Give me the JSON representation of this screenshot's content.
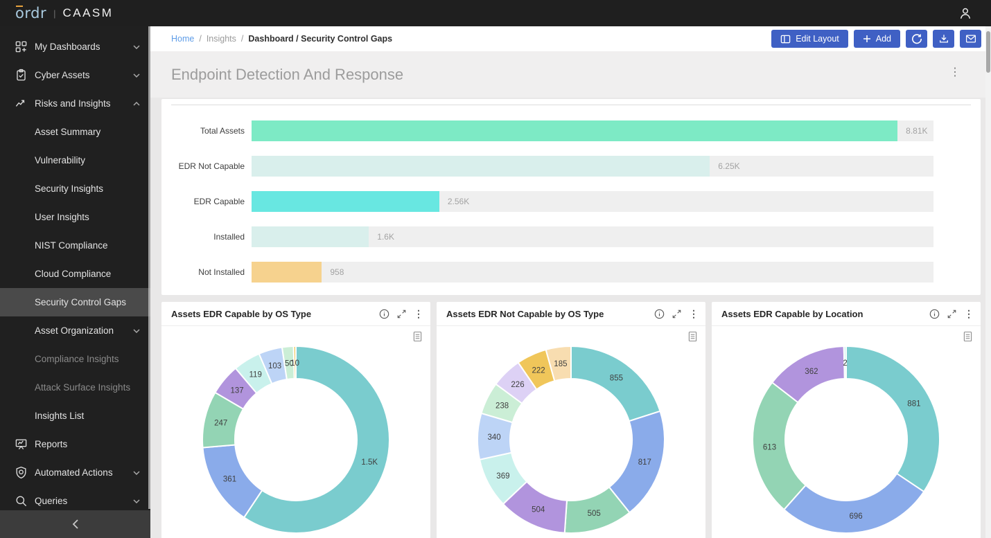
{
  "topbar": {
    "logo": "ordr",
    "divider": "|",
    "product": "CAASM"
  },
  "sidebar": {
    "items": [
      {
        "label": "My Dashboards",
        "icon": "dashboards-icon",
        "chevron": "down"
      },
      {
        "label": "Cyber Assets",
        "icon": "clipboard-icon",
        "chevron": "down"
      },
      {
        "label": "Risks and Insights",
        "icon": "trend-icon",
        "chevron": "up",
        "expanded": true
      },
      {
        "label": "Asset Summary"
      },
      {
        "label": "Vulnerability"
      },
      {
        "label": "Security Insights"
      },
      {
        "label": "User Insights"
      },
      {
        "label": "NIST Compliance"
      },
      {
        "label": "Cloud Compliance"
      },
      {
        "label": "Security Control Gaps",
        "selected": true
      },
      {
        "label": "Asset Organization",
        "chevron": "down"
      },
      {
        "label": "Compliance Insights",
        "disabled": true
      },
      {
        "label": "Attack Surface Insights",
        "disabled": true
      },
      {
        "label": "Insights List"
      },
      {
        "label": "Reports",
        "icon": "reports-icon"
      },
      {
        "label": "Automated Actions",
        "icon": "shield-icon",
        "chevron": "down"
      },
      {
        "label": "Queries",
        "icon": "search-icon",
        "chevron": "down"
      }
    ],
    "collapse_icon": "chevron-left-icon"
  },
  "breadcrumb": {
    "home": "Home",
    "separator": "/",
    "insights": "Insights",
    "current": "Dashboard / Security Control Gaps"
  },
  "toolbar": {
    "edit_layout": "Edit Layout",
    "add": "Add",
    "icon_buttons": [
      "refresh-icon",
      "download-icon",
      "mail-icon"
    ]
  },
  "card_icons": [
    "info-icon",
    "expand-icon",
    "kebab-icon",
    "document-icon"
  ],
  "colors": {
    "accent_blue": "#3f60c4",
    "sidebar_bg": "#202020",
    "selected_row": "#4a4a4a",
    "band_title": "#9c9c9c",
    "bar_track": "#efefef"
  },
  "chart_data": [
    {
      "type": "bar",
      "orientation": "horizontal",
      "title": "Endpoint Detection And Response",
      "categories": [
        "Total Assets",
        "EDR Not Capable",
        "EDR Capable",
        "Installed",
        "Not Installed"
      ],
      "values": [
        8810,
        6250,
        2560,
        1600,
        958
      ],
      "value_labels": [
        "8.81K",
        "6.25K",
        "2.56K",
        "1.6K",
        "958"
      ],
      "bar_colors": [
        "#7deac5",
        "#d9efec",
        "#68e7e1",
        "#d9efec",
        "#f6d28e"
      ],
      "track_color": "#efefef",
      "xlabel": "",
      "ylabel": "",
      "xlim": [
        0,
        9300
      ],
      "grid": false,
      "legend": "none"
    },
    {
      "type": "pie",
      "title": "Assets EDR Capable by OS Type",
      "slices": [
        {
          "label": "1.5K",
          "value": 1500,
          "color": "#7accce"
        },
        {
          "label": "361",
          "value": 361,
          "color": "#8aabea"
        },
        {
          "label": "247",
          "value": 247,
          "color": "#93d4b4"
        },
        {
          "label": "137",
          "value": 137,
          "color": "#b194dd"
        },
        {
          "label": "119",
          "value": 119,
          "color": "#c9f1ec"
        },
        {
          "label": "103",
          "value": 103,
          "color": "#bdd4f6"
        },
        {
          "label": "50",
          "value": 50,
          "color": "#cbeed6"
        },
        {
          "label": "10",
          "value": 10,
          "color": "#f0c65a"
        }
      ]
    },
    {
      "type": "pie",
      "title": "Assets EDR Not Capable by OS Type",
      "slices": [
        {
          "label": "855",
          "value": 855,
          "color": "#7accce"
        },
        {
          "label": "817",
          "value": 817,
          "color": "#8aabea"
        },
        {
          "label": "505",
          "value": 505,
          "color": "#93d4b4"
        },
        {
          "label": "504",
          "value": 504,
          "color": "#b194dd"
        },
        {
          "label": "369",
          "value": 369,
          "color": "#c9f1ec"
        },
        {
          "label": "340",
          "value": 340,
          "color": "#bdd4f6"
        },
        {
          "label": "238",
          "value": 238,
          "color": "#cbeed6"
        },
        {
          "label": "226",
          "value": 226,
          "color": "#ddd1f5"
        },
        {
          "label": "222",
          "value": 222,
          "color": "#f0c65a"
        },
        {
          "label": "185",
          "value": 185,
          "color": "#f8ddb0"
        }
      ]
    },
    {
      "type": "pie",
      "title": "Assets EDR Capable by Location",
      "slices": [
        {
          "label": "881",
          "value": 881,
          "color": "#7accce"
        },
        {
          "label": "696",
          "value": 696,
          "color": "#8aabea"
        },
        {
          "label": "613",
          "value": 613,
          "color": "#93d4b4"
        },
        {
          "label": "362",
          "value": 362,
          "color": "#b194dd"
        },
        {
          "label": "2",
          "value": 2,
          "color": "#c9f1ec"
        }
      ]
    }
  ]
}
